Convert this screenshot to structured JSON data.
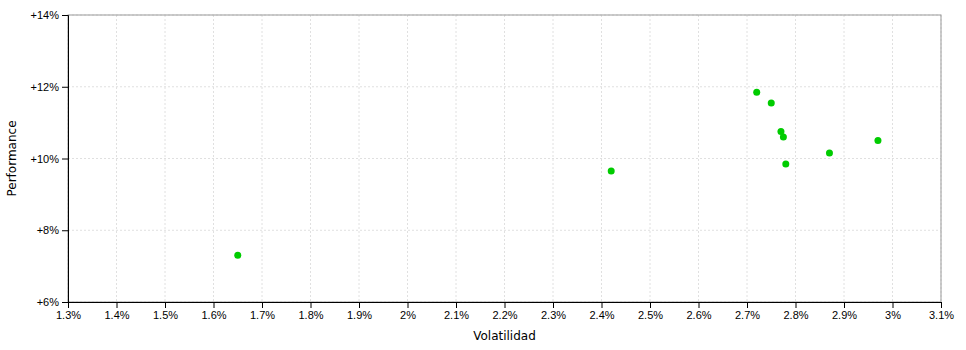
{
  "chart_data": {
    "type": "scatter",
    "xlabel": "Volatilidad",
    "ylabel": "Performance",
    "x": [
      1.65,
      2.42,
      2.72,
      2.75,
      2.77,
      2.775,
      2.78,
      2.87,
      2.97
    ],
    "values": [
      7.3,
      9.65,
      11.85,
      11.55,
      10.75,
      10.6,
      9.85,
      10.15,
      10.5
    ],
    "color": "#00cc00",
    "xlim": [
      1.3,
      3.1
    ],
    "ylim": [
      6.0,
      14.0
    ],
    "xticks": [
      {
        "value": 1.3,
        "label": "1.3%"
      },
      {
        "value": 1.4,
        "label": "1.4%"
      },
      {
        "value": 1.5,
        "label": "1.5%"
      },
      {
        "value": 1.6,
        "label": "1.6%"
      },
      {
        "value": 1.7,
        "label": "1.7%"
      },
      {
        "value": 1.8,
        "label": "1.8%"
      },
      {
        "value": 1.9,
        "label": "1.9%"
      },
      {
        "value": 2,
        "label": "2%"
      },
      {
        "value": 2.1,
        "label": "2.1%"
      },
      {
        "value": 2.2,
        "label": "2.2%"
      },
      {
        "value": 2.3,
        "label": "2.3%"
      },
      {
        "value": 2.4,
        "label": "2.4%"
      },
      {
        "value": 2.5,
        "label": "2.5%"
      },
      {
        "value": 2.6,
        "label": "2.6%"
      },
      {
        "value": 2.7,
        "label": "2.7%"
      },
      {
        "value": 2.8,
        "label": "2.8%"
      },
      {
        "value": 2.9,
        "label": "2.9%"
      },
      {
        "value": 3,
        "label": "3%"
      },
      {
        "value": 3.1,
        "label": "3.1%"
      }
    ],
    "yticks": [
      {
        "value": 6,
        "label": "+6%"
      },
      {
        "value": 8,
        "label": "+8%"
      },
      {
        "value": 10,
        "label": "+10%"
      },
      {
        "value": 12,
        "label": "+12%"
      },
      {
        "value": 14,
        "label": "+14%"
      }
    ],
    "grid": true
  }
}
